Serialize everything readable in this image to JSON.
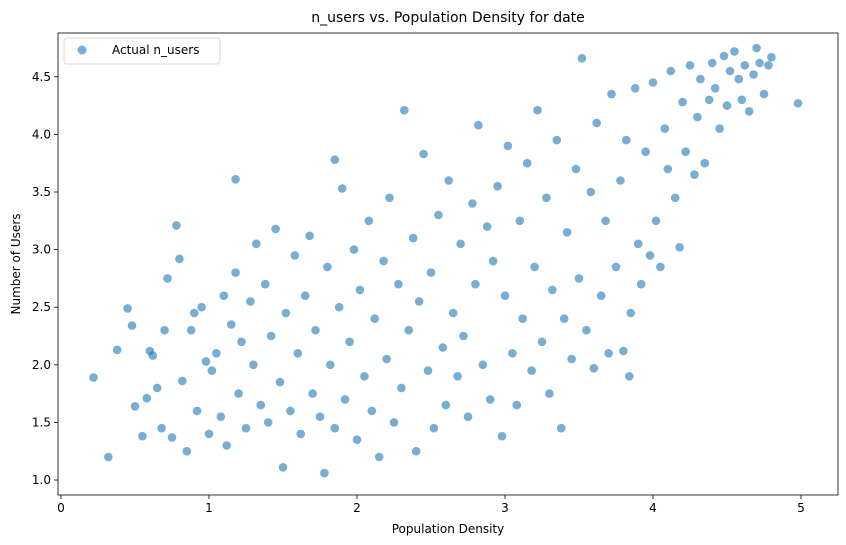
{
  "chart_data": {
    "type": "scatter",
    "title": "n_users vs. Population Density for date",
    "xlabel": "Population Density",
    "ylabel": "Number of Users",
    "xlim": [
      -0.02,
      5.25
    ],
    "ylim": [
      0.87,
      4.88
    ],
    "xticks": [
      0,
      1,
      2,
      3,
      4,
      5
    ],
    "yticks": [
      1.0,
      1.5,
      2.0,
      2.5,
      3.0,
      3.5,
      4.0,
      4.5
    ],
    "xtick_labels": [
      "0",
      "1",
      "2",
      "3",
      "4",
      "5"
    ],
    "ytick_labels": [
      "1.0",
      "1.5",
      "2.0",
      "2.5",
      "3.0",
      "3.5",
      "4.0",
      "4.5"
    ],
    "grid": false,
    "legend_position": "top-left",
    "series": [
      {
        "name": "Actual n_users",
        "color": "#1f77b4",
        "marker_alpha": 0.6,
        "points": [
          [
            0.22,
            1.89
          ],
          [
            0.32,
            1.2
          ],
          [
            0.38,
            2.13
          ],
          [
            0.45,
            2.49
          ],
          [
            0.48,
            2.34
          ],
          [
            0.5,
            1.64
          ],
          [
            0.55,
            1.38
          ],
          [
            0.58,
            1.71
          ],
          [
            0.6,
            2.12
          ],
          [
            0.62,
            2.08
          ],
          [
            0.65,
            1.8
          ],
          [
            0.68,
            1.45
          ],
          [
            0.7,
            2.3
          ],
          [
            0.72,
            2.75
          ],
          [
            0.75,
            1.37
          ],
          [
            0.78,
            3.21
          ],
          [
            0.8,
            2.92
          ],
          [
            0.82,
            1.86
          ],
          [
            0.85,
            1.25
          ],
          [
            0.88,
            2.3
          ],
          [
            0.9,
            2.45
          ],
          [
            0.92,
            1.6
          ],
          [
            0.95,
            2.5
          ],
          [
            0.98,
            2.03
          ],
          [
            1.0,
            1.4
          ],
          [
            1.02,
            1.95
          ],
          [
            1.05,
            2.1
          ],
          [
            1.08,
            1.55
          ],
          [
            1.1,
            2.6
          ],
          [
            1.12,
            1.3
          ],
          [
            1.15,
            2.35
          ],
          [
            1.18,
            3.61
          ],
          [
            1.18,
            2.8
          ],
          [
            1.2,
            1.75
          ],
          [
            1.22,
            2.2
          ],
          [
            1.25,
            1.45
          ],
          [
            1.28,
            2.55
          ],
          [
            1.3,
            2.0
          ],
          [
            1.32,
            3.05
          ],
          [
            1.35,
            1.65
          ],
          [
            1.38,
            2.7
          ],
          [
            1.4,
            1.5
          ],
          [
            1.42,
            2.25
          ],
          [
            1.45,
            3.18
          ],
          [
            1.48,
            1.85
          ],
          [
            1.5,
            1.11
          ],
          [
            1.52,
            2.45
          ],
          [
            1.55,
            1.6
          ],
          [
            1.58,
            2.95
          ],
          [
            1.6,
            2.1
          ],
          [
            1.62,
            1.4
          ],
          [
            1.65,
            2.6
          ],
          [
            1.68,
            3.12
          ],
          [
            1.7,
            1.75
          ],
          [
            1.72,
            2.3
          ],
          [
            1.75,
            1.55
          ],
          [
            1.78,
            1.06
          ],
          [
            1.8,
            2.85
          ],
          [
            1.82,
            2.0
          ],
          [
            1.85,
            3.78
          ],
          [
            1.85,
            1.45
          ],
          [
            1.88,
            2.5
          ],
          [
            1.9,
            3.53
          ],
          [
            1.92,
            1.7
          ],
          [
            1.95,
            2.2
          ],
          [
            1.98,
            3.0
          ],
          [
            2.0,
            1.35
          ],
          [
            2.02,
            2.65
          ],
          [
            2.05,
            1.9
          ],
          [
            2.08,
            3.25
          ],
          [
            2.1,
            1.6
          ],
          [
            2.12,
            2.4
          ],
          [
            2.15,
            1.2
          ],
          [
            2.18,
            2.9
          ],
          [
            2.2,
            2.05
          ],
          [
            2.22,
            3.45
          ],
          [
            2.25,
            1.5
          ],
          [
            2.28,
            2.7
          ],
          [
            2.3,
            1.8
          ],
          [
            2.32,
            4.21
          ],
          [
            2.35,
            2.3
          ],
          [
            2.38,
            3.1
          ],
          [
            2.4,
            1.25
          ],
          [
            2.42,
            2.55
          ],
          [
            2.45,
            3.83
          ],
          [
            2.48,
            1.95
          ],
          [
            2.5,
            2.8
          ],
          [
            2.52,
            1.45
          ],
          [
            2.55,
            3.3
          ],
          [
            2.58,
            2.15
          ],
          [
            2.6,
            1.65
          ],
          [
            2.62,
            3.6
          ],
          [
            2.65,
            2.45
          ],
          [
            2.68,
            1.9
          ],
          [
            2.7,
            3.05
          ],
          [
            2.72,
            2.25
          ],
          [
            2.75,
            1.55
          ],
          [
            2.78,
            3.4
          ],
          [
            2.8,
            2.7
          ],
          [
            2.82,
            4.08
          ],
          [
            2.85,
            2.0
          ],
          [
            2.88,
            3.2
          ],
          [
            2.9,
            1.7
          ],
          [
            2.92,
            2.9
          ],
          [
            2.95,
            3.55
          ],
          [
            2.98,
            1.38
          ],
          [
            3.0,
            2.6
          ],
          [
            3.02,
            3.9
          ],
          [
            3.05,
            2.1
          ],
          [
            3.08,
            1.65
          ],
          [
            3.1,
            3.25
          ],
          [
            3.12,
            2.4
          ],
          [
            3.15,
            3.75
          ],
          [
            3.18,
            1.95
          ],
          [
            3.2,
            2.85
          ],
          [
            3.22,
            4.21
          ],
          [
            3.25,
            2.2
          ],
          [
            3.28,
            3.45
          ],
          [
            3.3,
            1.75
          ],
          [
            3.32,
            2.65
          ],
          [
            3.35,
            3.95
          ],
          [
            3.38,
            1.45
          ],
          [
            3.4,
            2.4
          ],
          [
            3.42,
            3.15
          ],
          [
            3.45,
            2.05
          ],
          [
            3.48,
            3.7
          ],
          [
            3.5,
            2.75
          ],
          [
            3.52,
            4.66
          ],
          [
            3.55,
            2.3
          ],
          [
            3.58,
            3.5
          ],
          [
            3.6,
            1.97
          ],
          [
            3.62,
            4.1
          ],
          [
            3.65,
            2.6
          ],
          [
            3.68,
            3.25
          ],
          [
            3.7,
            2.1
          ],
          [
            3.72,
            4.35
          ],
          [
            3.75,
            2.85
          ],
          [
            3.78,
            3.6
          ],
          [
            3.8,
            2.12
          ],
          [
            3.82,
            3.95
          ],
          [
            3.84,
            1.9
          ],
          [
            3.85,
            2.45
          ],
          [
            3.88,
            4.4
          ],
          [
            3.9,
            3.05
          ],
          [
            3.92,
            2.7
          ],
          [
            3.95,
            3.85
          ],
          [
            3.98,
            2.95
          ],
          [
            4.0,
            4.45
          ],
          [
            4.02,
            3.25
          ],
          [
            4.05,
            2.85
          ],
          [
            4.08,
            4.05
          ],
          [
            4.1,
            3.7
          ],
          [
            4.12,
            4.55
          ],
          [
            4.15,
            3.45
          ],
          [
            4.18,
            3.02
          ],
          [
            4.2,
            4.28
          ],
          [
            4.22,
            3.85
          ],
          [
            4.25,
            4.6
          ],
          [
            4.28,
            3.65
          ],
          [
            4.3,
            4.15
          ],
          [
            4.32,
            4.48
          ],
          [
            4.35,
            3.75
          ],
          [
            4.38,
            4.3
          ],
          [
            4.4,
            4.62
          ],
          [
            4.42,
            4.4
          ],
          [
            4.45,
            4.05
          ],
          [
            4.48,
            4.68
          ],
          [
            4.5,
            4.25
          ],
          [
            4.52,
            4.55
          ],
          [
            4.55,
            4.72
          ],
          [
            4.58,
            4.48
          ],
          [
            4.6,
            4.3
          ],
          [
            4.62,
            4.6
          ],
          [
            4.65,
            4.2
          ],
          [
            4.68,
            4.52
          ],
          [
            4.7,
            4.75
          ],
          [
            4.72,
            4.62
          ],
          [
            4.75,
            4.35
          ],
          [
            4.78,
            4.6
          ],
          [
            4.8,
            4.67
          ],
          [
            4.98,
            4.27
          ]
        ]
      }
    ]
  }
}
